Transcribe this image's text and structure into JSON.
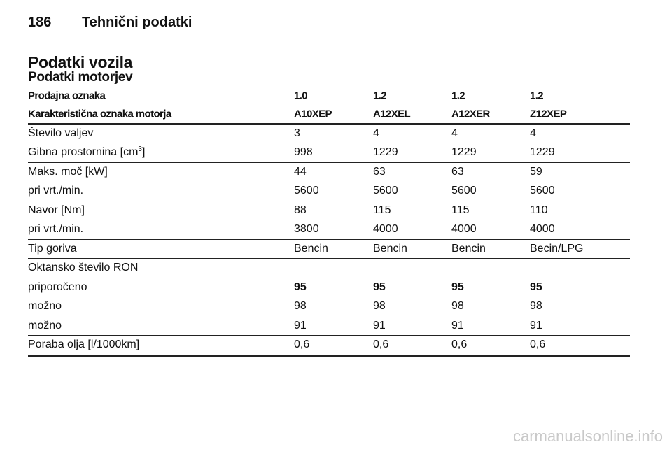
{
  "header": {
    "page_number": "186",
    "section": "Tehnični podatki"
  },
  "title": "Podatki vozila",
  "subtitle": "Podatki motorjev",
  "table": {
    "header_rows": [
      {
        "label": "Prodajna oznaka",
        "values": [
          "1.0",
          "1.2",
          "1.2",
          "1.2"
        ]
      },
      {
        "label": "Karakteristična oznaka motorja",
        "values": [
          "A10XEP",
          "A12XEL",
          "A12XER",
          "Z12XEP"
        ]
      }
    ],
    "groups": [
      [
        {
          "label": "Število valjev",
          "values": [
            "3",
            "4",
            "4",
            "4"
          ]
        }
      ],
      [
        {
          "label": {
            "text": "Gibna prostornina [cm",
            "sup": "3",
            "after": "]"
          },
          "values": [
            "998",
            "1229",
            "1229",
            "1229"
          ]
        }
      ],
      [
        {
          "label": "Maks. moč [kW]",
          "values": [
            "44",
            "63",
            "63",
            "59"
          ]
        },
        {
          "label": "pri vrt./min.",
          "values": [
            "5600",
            "5600",
            "5600",
            "5600"
          ]
        }
      ],
      [
        {
          "label": "Navor [Nm]",
          "values": [
            "88",
            "115",
            "115",
            "110"
          ]
        },
        {
          "label": "pri vrt./min.",
          "values": [
            "3800",
            "4000",
            "4000",
            "4000"
          ]
        }
      ],
      [
        {
          "label": "Tip goriva",
          "values": [
            "Bencin",
            "Bencin",
            "Bencin",
            "Becin/LPG"
          ]
        }
      ],
      [
        {
          "label": "Oktansko število RON",
          "values": []
        },
        {
          "label": "priporočeno",
          "values": [
            "95",
            "95",
            "95",
            "95"
          ],
          "bold": true
        },
        {
          "label": "možno",
          "values": [
            "98",
            "98",
            "98",
            "98"
          ]
        },
        {
          "label": "možno",
          "values": [
            "91",
            "91",
            "91",
            "91"
          ]
        }
      ],
      [
        {
          "label": "Poraba olja [l/1000km]",
          "values": [
            "0,6",
            "0,6",
            "0,6",
            "0,6"
          ]
        }
      ]
    ]
  },
  "watermark": "carmanualsonline.info"
}
